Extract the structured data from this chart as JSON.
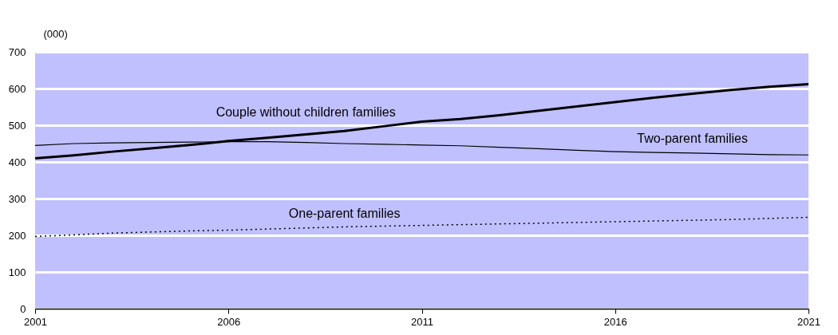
{
  "chart_data": {
    "type": "line",
    "ylabel": "(000)",
    "x": [
      2001,
      2002,
      2003,
      2004,
      2005,
      2006,
      2007,
      2008,
      2009,
      2010,
      2011,
      2012,
      2013,
      2014,
      2015,
      2016,
      2017,
      2018,
      2019,
      2020,
      2021
    ],
    "series": [
      {
        "name": "Couple without children families",
        "color": "#000000",
        "line_style": "solid",
        "values": [
          410,
          418,
          428,
          437,
          446,
          457,
          466,
          475,
          484,
          497,
          510,
          517,
          527,
          539,
          551,
          563,
          575,
          586,
          596,
          605,
          612
        ]
      },
      {
        "name": "Two-parent families",
        "color": "#000000",
        "line_style": "solid",
        "values": [
          445,
          450,
          452,
          453,
          454,
          455,
          455,
          453,
          450,
          448,
          446,
          444,
          440,
          436,
          432,
          428,
          426,
          424,
          422,
          420,
          419
        ]
      },
      {
        "name": "One-parent families",
        "color": "#000000",
        "line_style": "dotted",
        "values": [
          197,
          201,
          206,
          209,
          212,
          214,
          217,
          220,
          223,
          225,
          227,
          229,
          231,
          233,
          235,
          237,
          239,
          241,
          243,
          246,
          249
        ]
      }
    ],
    "xlim": [
      2001,
      2021
    ],
    "xticks": [
      2001,
      2006,
      2011,
      2016,
      2021
    ],
    "ylim": [
      0,
      700
    ],
    "yticks": [
      0,
      100,
      200,
      300,
      400,
      500,
      600,
      700
    ],
    "grid": "y",
    "legend": false,
    "marker": "none"
  }
}
